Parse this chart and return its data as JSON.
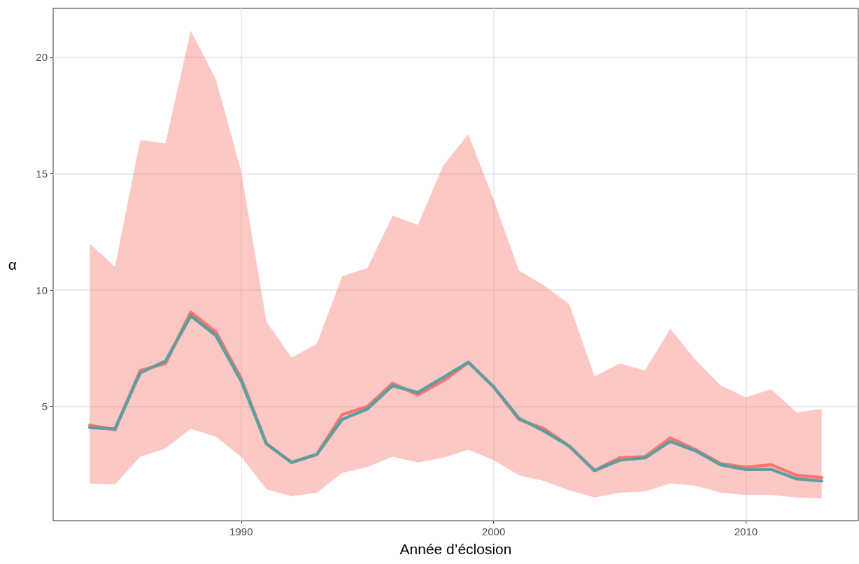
{
  "chart_data": {
    "type": "line",
    "xlabel": "Année d’éclosion",
    "ylabel": "α",
    "x": [
      1984,
      1985,
      1986,
      1987,
      1988,
      1989,
      1990,
      1991,
      1992,
      1993,
      1994,
      1995,
      1996,
      1997,
      1998,
      1999,
      2000,
      2001,
      2002,
      2003,
      2004,
      2005,
      2006,
      2007,
      2008,
      2009,
      2010,
      2011,
      2012,
      2013
    ],
    "series": [
      {
        "color": "#f8766d",
        "values": [
          4.2,
          4.0,
          6.55,
          6.85,
          9.05,
          8.2,
          6.2,
          3.4,
          2.6,
          2.95,
          4.65,
          5.0,
          6.0,
          5.5,
          6.1,
          6.9,
          5.85,
          4.45,
          4.05,
          3.3,
          2.25,
          2.8,
          2.85,
          3.65,
          3.15,
          2.55,
          2.4,
          2.5,
          2.05,
          1.95
        ],
        "lower": [
          1.7,
          1.65,
          2.85,
          3.2,
          4.05,
          3.7,
          2.85,
          1.45,
          1.15,
          1.3,
          2.15,
          2.4,
          2.85,
          2.6,
          2.8,
          3.15,
          2.7,
          2.05,
          1.8,
          1.4,
          1.1,
          1.3,
          1.35,
          1.7,
          1.6,
          1.3,
          1.2,
          1.2,
          1.1,
          1.05
        ],
        "upper": [
          12.0,
          11.0,
          16.45,
          16.3,
          21.15,
          19.05,
          15.1,
          8.65,
          7.1,
          7.7,
          10.6,
          10.95,
          13.2,
          12.8,
          15.35,
          16.7,
          13.9,
          10.85,
          10.2,
          9.4,
          6.3,
          6.85,
          6.55,
          8.35,
          7.0,
          5.9,
          5.4,
          5.75,
          4.75,
          4.9
        ]
      },
      {
        "color": "#5f9ea0",
        "values": [
          4.1,
          4.05,
          6.45,
          6.95,
          8.9,
          8.05,
          6.1,
          3.4,
          2.6,
          2.95,
          4.45,
          4.9,
          5.9,
          5.6,
          6.25,
          6.9,
          5.85,
          4.5,
          3.95,
          3.3,
          2.25,
          2.7,
          2.8,
          3.5,
          3.1,
          2.5,
          2.3,
          2.3,
          1.9,
          1.8
        ]
      }
    ],
    "xlim": [
      1982.55,
      2014.45
    ],
    "xticks": [
      1990,
      2000,
      2010
    ],
    "ylim": [
      0.1,
      22.1
    ],
    "yticks": [
      5,
      10,
      15,
      20
    ],
    "grid": true,
    "marker": "none",
    "line_style": "solid"
  }
}
